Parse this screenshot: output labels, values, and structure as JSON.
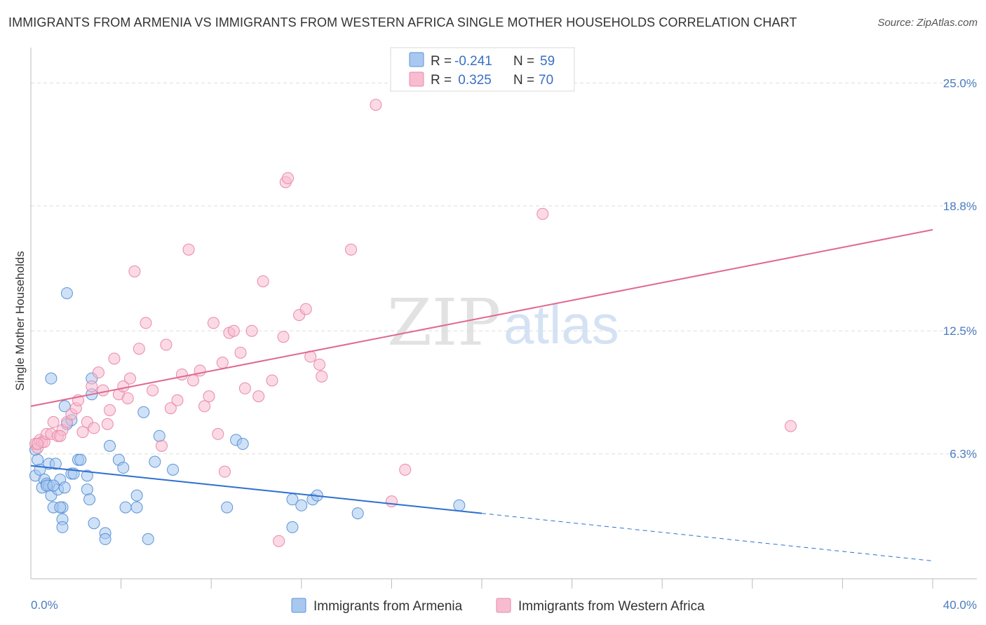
{
  "title": "IMMIGRANTS FROM ARMENIA VS IMMIGRANTS FROM WESTERN AFRICA SINGLE MOTHER HOUSEHOLDS CORRELATION CHART",
  "source": "Source: ZipAtlas.com",
  "watermark": {
    "zip": "ZIP",
    "atlas": "atlas"
  },
  "colors": {
    "armenia_fill": "#a8c8f0",
    "armenia_stroke": "#5b93d6",
    "armenia_line": "#2e6fd0",
    "wafrica_fill": "#f7bcd0",
    "wafrica_stroke": "#e88aa8",
    "wafrica_line": "#e0698f",
    "grid": "#dddddd",
    "tick_text": "#4a7cc0"
  },
  "legend": {
    "rows": [
      {
        "r_label": "R =",
        "r_value": "-0.241",
        "n_label": "N =",
        "n_value": "59"
      },
      {
        "r_label": "R =",
        "r_value": " 0.325",
        "n_label": "N =",
        "n_value": "70"
      }
    ]
  },
  "bottom_legend": {
    "armenia": "Immigrants from Armenia",
    "wafrica": "Immigrants from Western Africa"
  },
  "chart_data": {
    "type": "scatter",
    "title": "IMMIGRANTS FROM ARMENIA VS IMMIGRANTS FROM WESTERN AFRICA SINGLE MOTHER HOUSEHOLDS CORRELATION CHART",
    "xlabel": "",
    "ylabel": "Single Mother Households",
    "xlim": [
      0,
      40
    ],
    "ylim": [
      0,
      26.5
    ],
    "x_tick_labels": [
      "0.0%",
      "40.0%"
    ],
    "y_ticks": [
      6.3,
      12.5,
      18.8,
      25.0
    ],
    "y_tick_labels": [
      "6.3%",
      "12.5%",
      "18.8%",
      "25.0%"
    ],
    "grid": true,
    "legend_position": "top-center",
    "series": [
      {
        "name": "Immigrants from Armenia",
        "r": -0.241,
        "n": 59,
        "trend": {
          "x0": 0,
          "y0": 5.7,
          "x1": 20,
          "y1": 3.3,
          "dashed_to_x": 40,
          "dashed_to_y": 0.9
        },
        "points": [
          [
            0.2,
            6.5
          ],
          [
            0.3,
            6.0
          ],
          [
            0.2,
            5.2
          ],
          [
            0.4,
            5.5
          ],
          [
            0.5,
            4.6
          ],
          [
            0.6,
            5.0
          ],
          [
            0.7,
            4.8
          ],
          [
            0.8,
            4.7
          ],
          [
            0.9,
            4.2
          ],
          [
            0.8,
            5.8
          ],
          [
            1.0,
            3.6
          ],
          [
            1.1,
            5.8
          ],
          [
            1.2,
            4.5
          ],
          [
            1.3,
            5.0
          ],
          [
            1.4,
            3.6
          ],
          [
            1.5,
            4.6
          ],
          [
            1.3,
            3.6
          ],
          [
            1.4,
            3.0
          ],
          [
            1.4,
            2.6
          ],
          [
            1.5,
            8.7
          ],
          [
            1.6,
            7.8
          ],
          [
            1.8,
            8.0
          ],
          [
            1.8,
            5.3
          ],
          [
            1.9,
            5.3
          ],
          [
            2.1,
            6.0
          ],
          [
            2.2,
            6.0
          ],
          [
            2.5,
            5.2
          ],
          [
            2.5,
            4.5
          ],
          [
            2.7,
            10.1
          ],
          [
            2.7,
            9.3
          ],
          [
            2.6,
            4.0
          ],
          [
            2.8,
            2.8
          ],
          [
            3.3,
            2.3
          ],
          [
            3.3,
            2.0
          ],
          [
            3.5,
            6.7
          ],
          [
            3.9,
            6.0
          ],
          [
            4.1,
            5.6
          ],
          [
            4.2,
            3.6
          ],
          [
            4.7,
            4.2
          ],
          [
            4.7,
            3.6
          ],
          [
            5.0,
            8.4
          ],
          [
            5.2,
            2.0
          ],
          [
            5.5,
            5.9
          ],
          [
            5.7,
            7.2
          ],
          [
            6.3,
            5.5
          ],
          [
            8.7,
            3.6
          ],
          [
            9.1,
            7.0
          ],
          [
            9.4,
            6.8
          ],
          [
            11.6,
            2.6
          ],
          [
            11.6,
            4.0
          ],
          [
            12.0,
            3.7
          ],
          [
            12.5,
            4.0
          ],
          [
            12.7,
            4.2
          ],
          [
            14.5,
            3.3
          ],
          [
            19.0,
            3.7
          ],
          [
            1.6,
            14.4
          ],
          [
            0.9,
            10.1
          ],
          [
            0.7,
            4.7
          ],
          [
            1.0,
            4.7
          ]
        ]
      },
      {
        "name": "Immigrants from Western Africa",
        "r": 0.325,
        "n": 70,
        "trend": {
          "x0": 0,
          "y0": 8.7,
          "x1": 40,
          "y1": 17.6
        },
        "points": [
          [
            0.2,
            6.8
          ],
          [
            0.3,
            6.6
          ],
          [
            0.4,
            7.0
          ],
          [
            0.5,
            6.9
          ],
          [
            0.6,
            6.9
          ],
          [
            0.7,
            7.3
          ],
          [
            0.9,
            7.3
          ],
          [
            1.0,
            7.9
          ],
          [
            1.2,
            7.2
          ],
          [
            1.4,
            7.5
          ],
          [
            1.6,
            7.9
          ],
          [
            1.8,
            8.3
          ],
          [
            2.0,
            8.6
          ],
          [
            2.1,
            9.0
          ],
          [
            2.3,
            7.4
          ],
          [
            2.5,
            7.9
          ],
          [
            2.7,
            9.7
          ],
          [
            2.8,
            7.6
          ],
          [
            3.0,
            10.4
          ],
          [
            3.2,
            9.5
          ],
          [
            3.4,
            7.8
          ],
          [
            3.5,
            8.5
          ],
          [
            3.7,
            11.1
          ],
          [
            3.9,
            9.3
          ],
          [
            4.1,
            9.7
          ],
          [
            4.3,
            9.1
          ],
          [
            4.4,
            10.1
          ],
          [
            4.6,
            15.5
          ],
          [
            4.8,
            11.6
          ],
          [
            5.1,
            12.9
          ],
          [
            5.4,
            9.5
          ],
          [
            5.8,
            6.7
          ],
          [
            6.0,
            11.8
          ],
          [
            6.2,
            8.6
          ],
          [
            6.5,
            9.0
          ],
          [
            6.7,
            10.3
          ],
          [
            7.0,
            16.6
          ],
          [
            7.2,
            10.0
          ],
          [
            7.5,
            10.5
          ],
          [
            7.7,
            8.7
          ],
          [
            7.9,
            9.2
          ],
          [
            8.1,
            12.9
          ],
          [
            8.3,
            7.3
          ],
          [
            8.5,
            10.9
          ],
          [
            8.6,
            5.4
          ],
          [
            8.8,
            12.4
          ],
          [
            9.0,
            12.5
          ],
          [
            9.3,
            11.4
          ],
          [
            9.5,
            9.6
          ],
          [
            9.8,
            12.5
          ],
          [
            10.1,
            9.2
          ],
          [
            10.3,
            15.0
          ],
          [
            10.7,
            10.0
          ],
          [
            11.0,
            1.9
          ],
          [
            11.2,
            12.2
          ],
          [
            11.3,
            20.0
          ],
          [
            11.4,
            20.2
          ],
          [
            11.9,
            13.3
          ],
          [
            12.2,
            13.6
          ],
          [
            12.4,
            11.2
          ],
          [
            12.8,
            10.8
          ],
          [
            12.9,
            10.2
          ],
          [
            14.2,
            16.6
          ],
          [
            15.3,
            23.9
          ],
          [
            16.0,
            3.9
          ],
          [
            16.6,
            5.5
          ],
          [
            22.7,
            18.4
          ],
          [
            33.7,
            7.7
          ],
          [
            0.3,
            6.8
          ],
          [
            1.3,
            7.2
          ]
        ]
      }
    ]
  }
}
